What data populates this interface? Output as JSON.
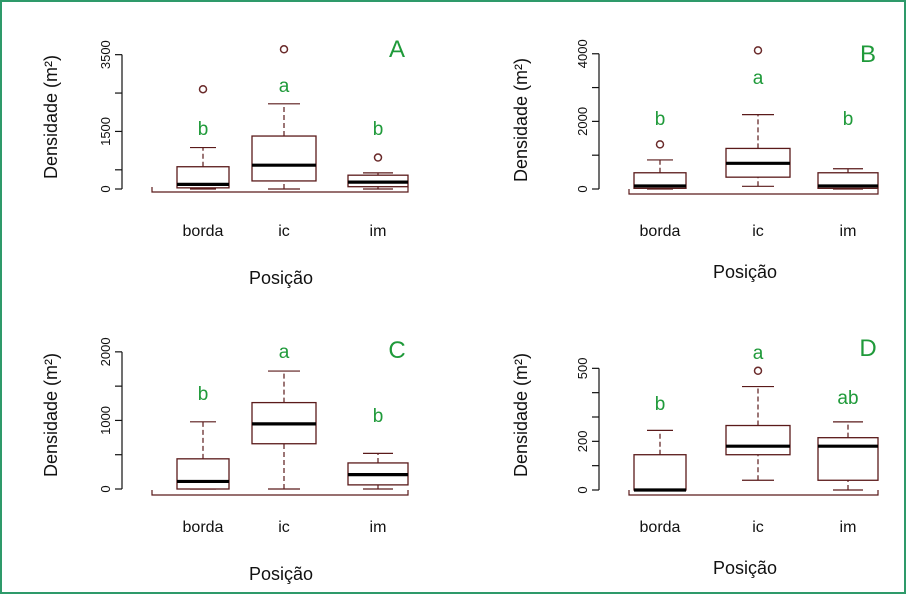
{
  "style": {
    "border_color": "#2e9a6a",
    "annotation_color": "#1f9a3a",
    "box_color": "#5a1a1a",
    "median_color": "#000000",
    "axis_color": "#111111"
  },
  "chart_data": [
    {
      "type": "boxplot",
      "panel": "A",
      "xlabel": "Posição",
      "ylabel": "Densidade (m²)",
      "categories": [
        "borda",
        "ic",
        "im"
      ],
      "yticks": [
        0,
        500,
        1500,
        2500,
        3500
      ],
      "ytick_labels": [
        "0",
        "",
        "1500",
        "",
        "3500"
      ],
      "ylim": [
        0,
        3700
      ],
      "boxes": [
        {
          "min": 0,
          "q1": 30,
          "median": 120,
          "q3": 580,
          "max": 1080,
          "outliers": [
            2600
          ]
        },
        {
          "min": 0,
          "q1": 210,
          "median": 620,
          "q3": 1380,
          "max": 2220,
          "outliers": [
            3640
          ]
        },
        {
          "min": 0,
          "q1": 60,
          "median": 180,
          "q3": 360,
          "max": 420,
          "outliers": [
            820
          ]
        }
      ],
      "letters": [
        "b",
        "a",
        "b"
      ]
    },
    {
      "type": "boxplot",
      "panel": "B",
      "xlabel": "Posição",
      "ylabel": "Densidade (m²)",
      "categories": [
        "borda",
        "ic",
        "im"
      ],
      "yticks": [
        0,
        1000,
        2000,
        3000,
        4000
      ],
      "ytick_labels": [
        "0",
        "",
        "2000",
        "",
        "4000"
      ],
      "ylim": [
        0,
        4200
      ],
      "boxes": [
        {
          "min": 0,
          "q1": 20,
          "median": 90,
          "q3": 480,
          "max": 860,
          "outliers": [
            1320
          ]
        },
        {
          "min": 80,
          "q1": 350,
          "median": 760,
          "q3": 1200,
          "max": 2200,
          "outliers": [
            4100
          ]
        },
        {
          "min": 0,
          "q1": 20,
          "median": 90,
          "q3": 480,
          "max": 600,
          "outliers": []
        }
      ],
      "letters": [
        "b",
        "a",
        "b"
      ]
    },
    {
      "type": "boxplot",
      "panel": "C",
      "xlabel": "Posição",
      "ylabel": "Densidade (m²)",
      "categories": [
        "borda",
        "ic",
        "im"
      ],
      "yticks": [
        0,
        500,
        1000,
        1500,
        2000
      ],
      "ytick_labels": [
        "0",
        "",
        "1000",
        "",
        "2000"
      ],
      "ylim": [
        0,
        2100
      ],
      "boxes": [
        {
          "min": 0,
          "q1": 0,
          "median": 110,
          "q3": 440,
          "max": 980,
          "outliers": []
        },
        {
          "min": 0,
          "q1": 660,
          "median": 950,
          "q3": 1260,
          "max": 1720,
          "outliers": []
        },
        {
          "min": 0,
          "q1": 60,
          "median": 210,
          "q3": 380,
          "max": 520,
          "outliers": []
        }
      ],
      "letters": [
        "b",
        "a",
        "b"
      ]
    },
    {
      "type": "boxplot",
      "panel": "D",
      "xlabel": "Posição",
      "ylabel": "Densidade (m²)",
      "categories": [
        "borda",
        "ic",
        "im"
      ],
      "yticks": [
        0,
        100,
        200,
        300,
        400,
        500
      ],
      "ytick_labels": [
        "0",
        "",
        "200",
        "",
        "",
        "500"
      ],
      "ylim": [
        0,
        600
      ],
      "boxes": [
        {
          "min": 0,
          "q1": 0,
          "median": 0,
          "q3": 145,
          "max": 245,
          "outliers": []
        },
        {
          "min": 40,
          "q1": 145,
          "median": 180,
          "q3": 265,
          "max": 425,
          "outliers": [
            490
          ]
        },
        {
          "min": 0,
          "q1": 40,
          "median": 180,
          "q3": 215,
          "max": 280,
          "outliers": []
        }
      ],
      "letters": [
        "b",
        "a",
        "ab"
      ]
    }
  ]
}
